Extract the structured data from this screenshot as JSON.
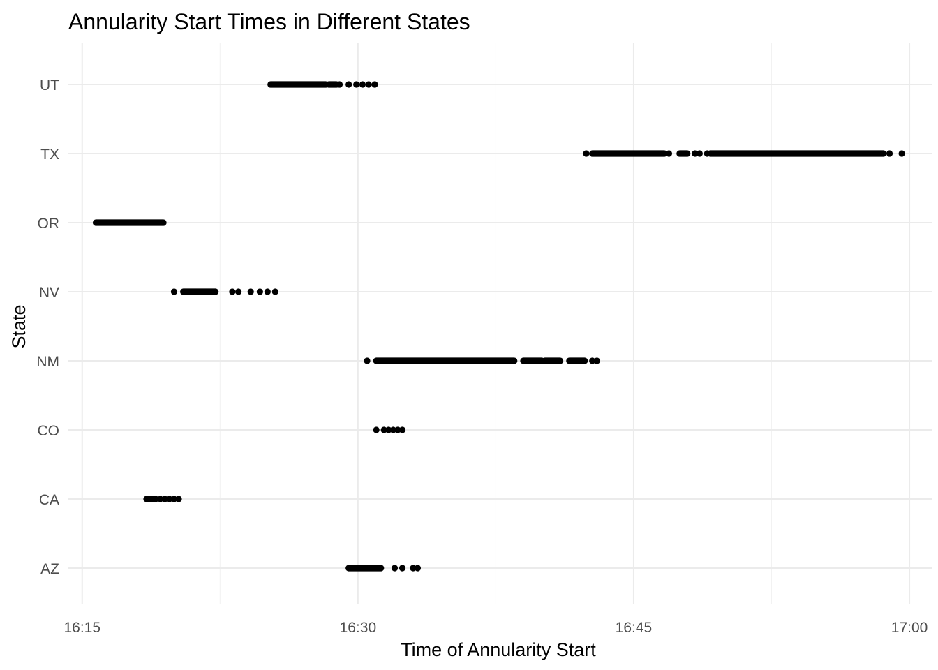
{
  "chart_data": {
    "type": "scatter",
    "title": "Annularity Start Times in Different States",
    "xlabel": "Time of Annularity Start",
    "ylabel": "State",
    "x_unit": "time of day (HH:MM)",
    "xlim": [
      "16:14:15",
      "17:01:15"
    ],
    "x_ticks": [
      "16:15",
      "16:30",
      "16:45",
      "17:00"
    ],
    "categories": [
      "AZ",
      "CA",
      "CO",
      "NM",
      "NV",
      "OR",
      "TX",
      "UT"
    ],
    "grid": true,
    "legend": "none",
    "point_color": "#000000",
    "series": [
      {
        "category": "AZ",
        "ranges": [
          [
            "16:29:30",
            "16:31:15"
          ]
        ],
        "points": [
          "16:32:00",
          "16:32:25",
          "16:33:00",
          "16:33:15"
        ]
      },
      {
        "category": "CA",
        "ranges": [
          [
            "16:18:30",
            "16:19:00"
          ]
        ],
        "points": [
          "16:19:15",
          "16:19:30",
          "16:19:45",
          "16:20:00",
          "16:20:15"
        ]
      },
      {
        "category": "CO",
        "ranges": [],
        "points": [
          "16:31:00",
          "16:31:25",
          "16:31:40",
          "16:31:55",
          "16:32:10",
          "16:32:25"
        ]
      },
      {
        "category": "NM",
        "ranges": [
          [
            "16:31:00",
            "16:38:00"
          ],
          [
            "16:38:00",
            "16:38:30"
          ],
          [
            "16:39:00",
            "16:40:00"
          ],
          [
            "16:40:10",
            "16:41:00"
          ],
          [
            "16:41:30",
            "16:42:20"
          ]
        ],
        "points": [
          "16:30:30",
          "16:42:45",
          "16:43:00"
        ]
      },
      {
        "category": "NV",
        "ranges": [
          [
            "16:20:30",
            "16:22:15"
          ]
        ],
        "points": [
          "16:20:00",
          "16:23:10",
          "16:23:30",
          "16:24:10",
          "16:24:40",
          "16:25:05",
          "16:25:30"
        ]
      },
      {
        "category": "OR",
        "ranges": [
          [
            "16:15:45",
            "16:19:25"
          ]
        ],
        "points": []
      },
      {
        "category": "TX",
        "ranges": [
          [
            "16:42:45",
            "16:46:40"
          ],
          [
            "16:47:30",
            "16:47:55"
          ],
          [
            "16:49:10",
            "16:58:35"
          ]
        ],
        "points": [
          "16:42:25",
          "16:46:55",
          "16:48:20",
          "16:48:35",
          "16:49:00",
          "16:58:55",
          "16:59:35"
        ]
      },
      {
        "category": "UT",
        "ranges": [
          [
            "16:25:15",
            "16:28:15"
          ],
          [
            "16:28:25",
            "16:28:50"
          ]
        ],
        "points": [
          "16:29:00",
          "16:29:30",
          "16:29:55",
          "16:30:15",
          "16:30:35",
          "16:30:55"
        ]
      }
    ]
  }
}
